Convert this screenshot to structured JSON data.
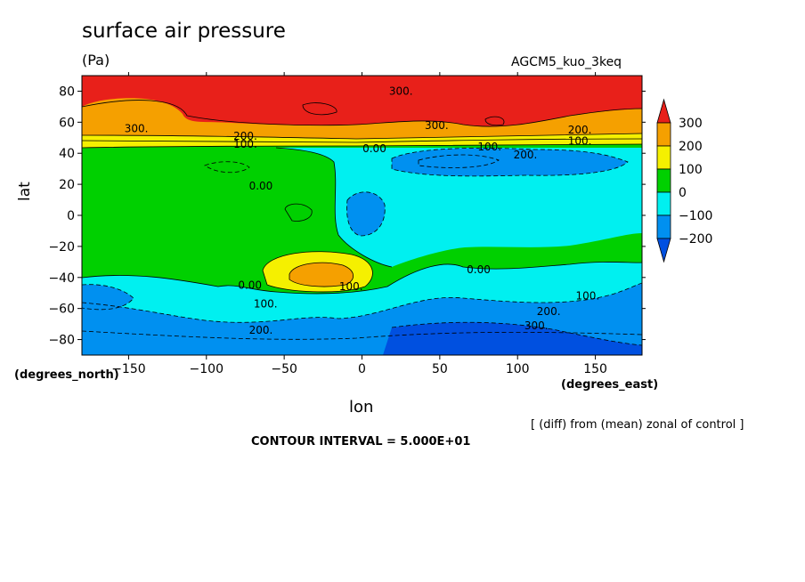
{
  "chart_data": {
    "type": "heatmap",
    "title": "surface air pressure",
    "units": "(Pa)",
    "experiment": "AGCM5_kuo_3keq",
    "xlabel": "lon",
    "ylabel": "lat",
    "xunit": "(degrees_east)",
    "yunit": "(degrees_north)",
    "xlim": [
      -180,
      180
    ],
    "ylim": [
      -90,
      90
    ],
    "x_ticks": [
      -150,
      -100,
      -50,
      0,
      50,
      100,
      150
    ],
    "y_ticks": [
      -80,
      -60,
      -40,
      -20,
      0,
      20,
      40,
      60,
      80
    ],
    "note": "[ (diff) from (mean) zonal of control ]",
    "contour_interval": "CONTOUR INTERVAL = 5.000E+01",
    "colorbar": {
      "levels": [
        300,
        200,
        100,
        0,
        -100,
        -200
      ],
      "colors": [
        "#e8201a",
        "#f5a000",
        "#f5f000",
        "#00d000",
        "#00f0f0",
        "#0090f0",
        "#0050e0"
      ]
    },
    "contour_labels": [
      {
        "text": "300.",
        "lon": 25,
        "lat": 80
      },
      {
        "text": "300.",
        "lon": -145,
        "lat": 56
      },
      {
        "text": "300.",
        "lon": 48,
        "lat": 58
      },
      {
        "text": "200.",
        "lon": -75,
        "lat": 51
      },
      {
        "text": "100.",
        "lon": -75,
        "lat": 46
      },
      {
        "text": "200.",
        "lon": 140,
        "lat": 55
      },
      {
        "text": "100.",
        "lon": 140,
        "lat": 48
      },
      {
        "text": "0.00",
        "lon": 8,
        "lat": 43
      },
      {
        "text": "100.",
        "lon": 82,
        "lat": 44
      },
      {
        "text": "200.",
        "lon": 105,
        "lat": 39
      },
      {
        "text": "0.00",
        "lon": -65,
        "lat": 19
      },
      {
        "text": "0.00",
        "lon": 75,
        "lat": -35
      },
      {
        "text": "0.00",
        "lon": -72,
        "lat": -45
      },
      {
        "text": "100.",
        "lon": -7,
        "lat": -46
      },
      {
        "text": "100.",
        "lon": -62,
        "lat": -57
      },
      {
        "text": "200.",
        "lon": -65,
        "lat": -74
      },
      {
        "text": "200.",
        "lon": 120,
        "lat": -62
      },
      {
        "text": "300.",
        "lon": 112,
        "lat": -71
      },
      {
        "text": "100.",
        "lon": 145,
        "lat": -52
      }
    ],
    "grid": false,
    "legend": "right"
  }
}
